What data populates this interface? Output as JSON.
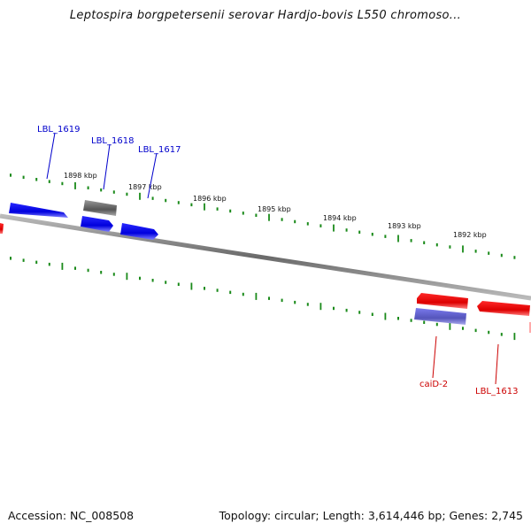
{
  "title": "Leptospira borgpetersenii serovar Hardjo-bovis L550 chromoso...",
  "footer": {
    "accession": "Accession: NC_008508",
    "summary": "Topology: circular; Length: 3,614,446 bp; Genes: 2,745"
  },
  "colors": {
    "forward_gene": "#0000ee",
    "reverse_gene": "#ee0000",
    "other_gene": "#666666",
    "forward_label": "#0000cc",
    "reverse_label": "#cc0000",
    "tick": "#1a8a1a",
    "backbone": "#888888"
  },
  "ruler": {
    "unit": "kbp",
    "tick_labels": [
      "1898 kbp",
      "1897 kbp",
      "1896 kbp",
      "1895 kbp",
      "1894 kbp",
      "1893 kbp",
      "1892 kbp"
    ]
  },
  "genes": {
    "forward_labeled": [
      "LBL_1619",
      "LBL_1618",
      "LBL_1617"
    ],
    "reverse_labeled": [
      "caiD-2",
      "LBL_1613"
    ]
  }
}
